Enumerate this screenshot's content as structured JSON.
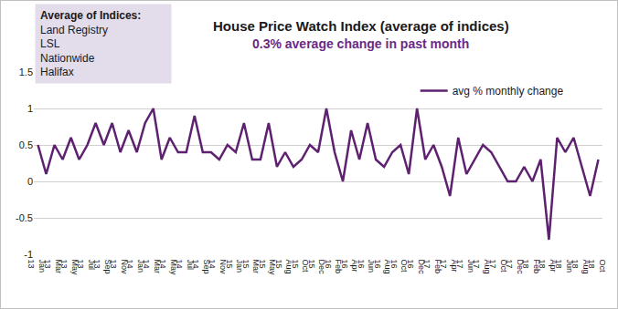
{
  "chart_data": {
    "type": "line",
    "title": "House Price Watch Index (average of indices)",
    "subtitle": "0.3% average change in past month",
    "annotations": [
      "Average of Indices:",
      "Land Registry",
      "LSL",
      "Nationwide",
      "Halifax"
    ],
    "categories": [
      "Jan 13",
      null,
      "Mar 13",
      null,
      "May 13",
      null,
      "Jul 13",
      null,
      "Sep 13",
      null,
      "Nov 13",
      null,
      "Jan 14",
      null,
      "Mar 14",
      null,
      "May 14",
      null,
      "Jul 14",
      null,
      "Sep 14",
      null,
      "Nov 14",
      null,
      "Jan 15",
      null,
      "Mar 15",
      null,
      "May 15",
      null,
      "Aug 15",
      null,
      "Oct 15",
      null,
      "Dec 15",
      null,
      "Feb 16",
      null,
      "Apr 16",
      null,
      "Jun 16",
      null,
      "Aug 16",
      null,
      "Oct 16",
      null,
      "Dec 16",
      null,
      "Feb 17",
      null,
      "Apr 17",
      null,
      "Jun 17",
      null,
      "Aug 17",
      null,
      "Oct 17",
      null,
      "Dec 17",
      null,
      "Feb 18",
      null,
      "Apr 18",
      null,
      "Jun 18",
      null,
      "Aug 18",
      null,
      "Oct 18"
    ],
    "series": [
      {
        "name": "avg % monthly change",
        "color": "#5e2170",
        "values": [
          0.5,
          0.1,
          0.5,
          0.3,
          0.6,
          0.3,
          0.5,
          0.8,
          0.5,
          0.8,
          0.4,
          0.7,
          0.4,
          0.8,
          1.0,
          0.3,
          0.6,
          0.4,
          0.4,
          0.9,
          0.4,
          0.4,
          0.3,
          0.5,
          0.4,
          0.8,
          0.3,
          0.3,
          0.8,
          0.2,
          0.4,
          0.2,
          0.3,
          0.5,
          0.4,
          1.0,
          0.4,
          0.0,
          0.7,
          0.3,
          0.8,
          0.3,
          0.2,
          0.4,
          0.5,
          0.1,
          1.0,
          0.3,
          0.5,
          0.2,
          -0.2,
          0.6,
          0.1,
          0.3,
          0.5,
          0.4,
          0.2,
          0.0,
          0.0,
          0.2,
          0.0,
          0.3,
          -0.8,
          0.6,
          0.4,
          0.6,
          0.2,
          -0.2,
          0.3
        ]
      }
    ],
    "ylim": [
      -1,
      1.5
    ],
    "yticks": [
      -1,
      -0.5,
      0,
      0.5,
      1,
      1.5
    ],
    "grid": true,
    "legend": "upper right"
  }
}
